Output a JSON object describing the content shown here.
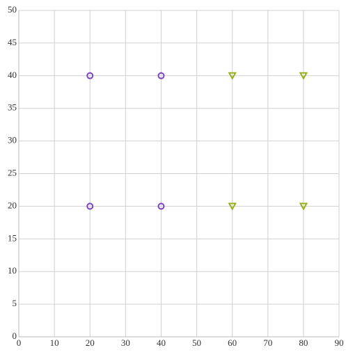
{
  "chart_data": {
    "type": "scatter",
    "xlim": [
      0,
      90
    ],
    "xticks": [
      0,
      10,
      20,
      30,
      40,
      50,
      60,
      70,
      80,
      90
    ],
    "ylim": [
      0,
      50
    ],
    "yticks": [
      0,
      5,
      10,
      15,
      20,
      25,
      30,
      35,
      40,
      45,
      50
    ],
    "grid": true,
    "series": [
      {
        "color": "#7c45c4",
        "marker": "circle",
        "x": [
          20,
          20,
          40,
          40
        ],
        "values": [
          20,
          40,
          20,
          40
        ]
      },
      {
        "color": "#9aaf1f",
        "marker": "triangle-down",
        "x": [
          60,
          60,
          80,
          80
        ],
        "values": [
          20,
          40,
          20,
          40
        ]
      }
    ]
  }
}
